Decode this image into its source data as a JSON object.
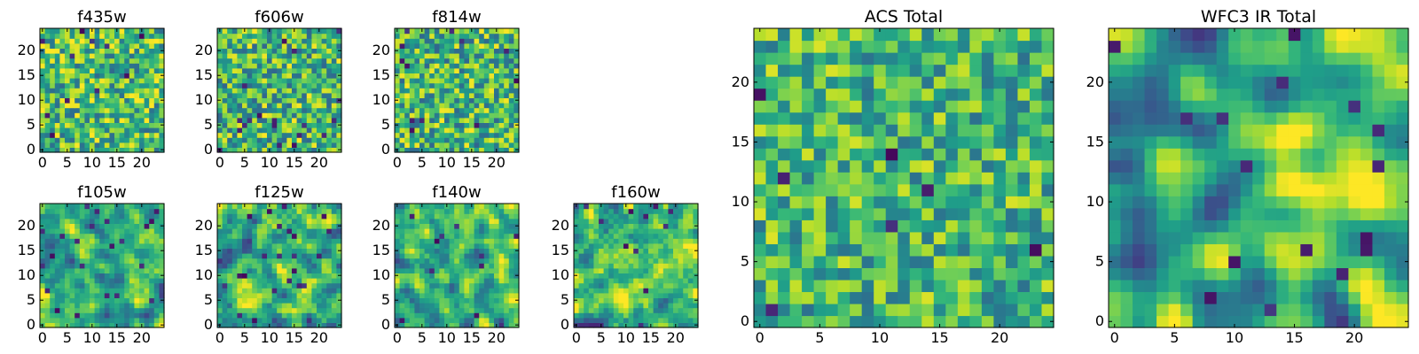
{
  "figure": {
    "colormap": "viridis",
    "colormap_stops": [
      "#440154",
      "#482878",
      "#3e4989",
      "#31688e",
      "#26828e",
      "#1f9e89",
      "#35b779",
      "#6ece58",
      "#b5de2b",
      "#fde725"
    ],
    "axis_color": "#000000",
    "background": "#ffffff"
  },
  "chart_data": [
    {
      "type": "heatmap",
      "title": "f435w",
      "shape": [
        25,
        25
      ],
      "x_ticks": [
        0,
        5,
        10,
        15,
        20
      ],
      "y_ticks": [
        0,
        5,
        10,
        15,
        20
      ],
      "xlim": [
        -0.5,
        24.5
      ],
      "ylim": [
        -0.5,
        24.5
      ],
      "origin": "lower",
      "grid": false,
      "values_note": "pixel noise, 0-1 normalized",
      "seed": 11,
      "smooth": 0,
      "mean": 0.68,
      "spread": 0.42
    },
    {
      "type": "heatmap",
      "title": "f606w",
      "shape": [
        25,
        25
      ],
      "x_ticks": [
        0,
        5,
        10,
        15,
        20
      ],
      "y_ticks": [
        0,
        5,
        10,
        15,
        20
      ],
      "xlim": [
        -0.5,
        24.5
      ],
      "ylim": [
        -0.5,
        24.5
      ],
      "origin": "lower",
      "grid": false,
      "values_note": "pixel noise, 0-1 normalized",
      "seed": 23,
      "smooth": 0,
      "mean": 0.66,
      "spread": 0.42
    },
    {
      "type": "heatmap",
      "title": "f814w",
      "shape": [
        25,
        25
      ],
      "x_ticks": [
        0,
        5,
        10,
        15,
        20
      ],
      "y_ticks": [
        0,
        5,
        10,
        15,
        20
      ],
      "xlim": [
        -0.5,
        24.5
      ],
      "ylim": [
        -0.5,
        24.5
      ],
      "origin": "lower",
      "grid": false,
      "values_note": "pixel noise, 0-1 normalized",
      "seed": 37,
      "smooth": 0,
      "mean": 0.66,
      "spread": 0.42
    },
    {
      "type": "heatmap",
      "title": "f105w",
      "shape": [
        25,
        25
      ],
      "x_ticks": [
        0,
        5,
        10,
        15,
        20
      ],
      "y_ticks": [
        0,
        5,
        10,
        15,
        20
      ],
      "xlim": [
        -0.5,
        24.5
      ],
      "ylim": [
        -0.5,
        24.5
      ],
      "origin": "lower",
      "grid": false,
      "values_note": "pixel noise, 0-1 normalized",
      "seed": 51,
      "smooth": 1,
      "mean": 0.64,
      "spread": 0.55
    },
    {
      "type": "heatmap",
      "title": "f125w",
      "shape": [
        25,
        25
      ],
      "x_ticks": [
        0,
        5,
        10,
        15,
        20
      ],
      "y_ticks": [
        0,
        5,
        10,
        15,
        20
      ],
      "xlim": [
        -0.5,
        24.5
      ],
      "ylim": [
        -0.5,
        24.5
      ],
      "origin": "lower",
      "grid": false,
      "values_note": "pixel noise, 0-1 normalized",
      "seed": 67,
      "smooth": 1,
      "mean": 0.62,
      "spread": 0.6
    },
    {
      "type": "heatmap",
      "title": "f140w",
      "shape": [
        25,
        25
      ],
      "x_ticks": [
        0,
        5,
        10,
        15,
        20
      ],
      "y_ticks": [
        0,
        5,
        10,
        15,
        20
      ],
      "xlim": [
        -0.5,
        24.5
      ],
      "ylim": [
        -0.5,
        24.5
      ],
      "origin": "lower",
      "grid": false,
      "values_note": "pixel noise, 0-1 normalized",
      "seed": 79,
      "smooth": 1,
      "mean": 0.62,
      "spread": 0.6
    },
    {
      "type": "heatmap",
      "title": "f160w",
      "shape": [
        25,
        25
      ],
      "x_ticks": [
        0,
        5,
        10,
        15,
        20
      ],
      "y_ticks": [
        0,
        5,
        10,
        15,
        20
      ],
      "xlim": [
        -0.5,
        24.5
      ],
      "ylim": [
        -0.5,
        24.5
      ],
      "origin": "lower",
      "grid": false,
      "values_note": "pixel noise, 0-1 normalized",
      "seed": 97,
      "smooth": 1,
      "mean": 0.6,
      "spread": 0.62
    },
    {
      "type": "heatmap",
      "title": "ACS Total",
      "shape": [
        25,
        25
      ],
      "x_ticks": [
        0,
        5,
        10,
        15,
        20
      ],
      "y_ticks": [
        0,
        5,
        10,
        15,
        20
      ],
      "xlim": [
        -0.5,
        24.5
      ],
      "ylim": [
        -0.5,
        24.5
      ],
      "origin": "lower",
      "grid": false,
      "values_note": "pixel noise, 0-1 normalized",
      "seed": 131,
      "smooth": 0,
      "mean": 0.66,
      "spread": 0.36
    },
    {
      "type": "heatmap",
      "title": "WFC3 IR Total",
      "shape": [
        25,
        25
      ],
      "x_ticks": [
        0,
        5,
        10,
        15,
        20
      ],
      "y_ticks": [
        0,
        5,
        10,
        15,
        20
      ],
      "xlim": [
        -0.5,
        24.5
      ],
      "ylim": [
        -0.5,
        24.5
      ],
      "origin": "lower",
      "grid": false,
      "values_note": "pixel noise, 0-1 normalized",
      "seed": 173,
      "smooth": 2,
      "mean": 0.66,
      "spread": 0.7,
      "gradient": 0.25
    }
  ]
}
